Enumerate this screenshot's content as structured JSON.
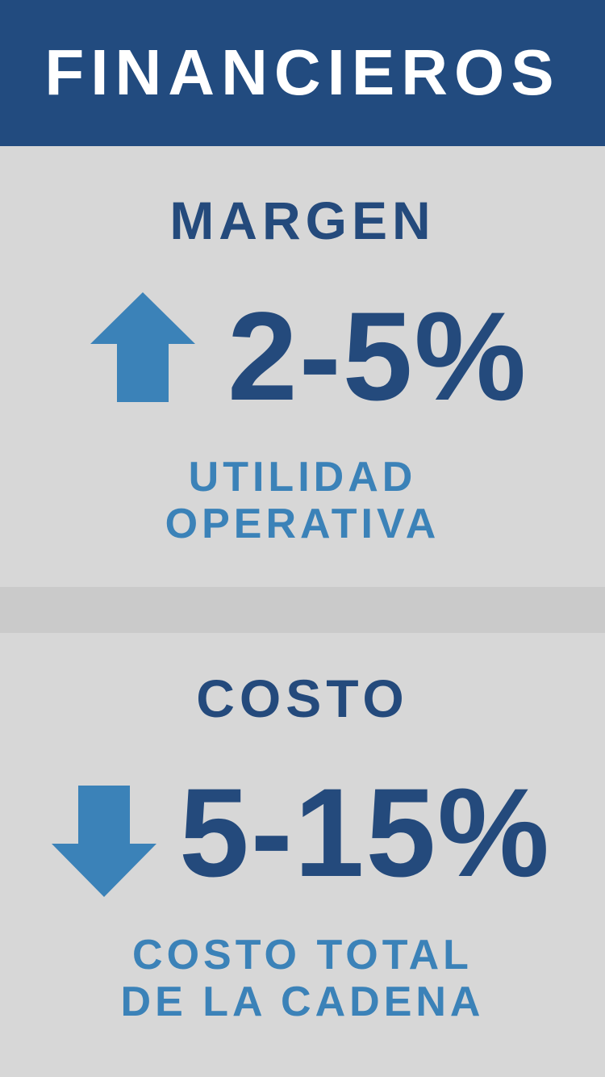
{
  "header": {
    "title": "FINANCIEROS"
  },
  "colors": {
    "header_bg": "#224b7f",
    "dark_blue": "#244a7c",
    "light_blue": "#3b82b8",
    "background": "#d7d7d7",
    "separator": "#cacaca"
  },
  "sections": [
    {
      "title": "MARGEN",
      "icon": "arrow-up-icon",
      "value": "2-5%",
      "subtitle_lines": [
        "UTILIDAD",
        "OPERATIVA"
      ]
    },
    {
      "title": "COSTO",
      "icon": "arrow-down-icon",
      "value": "5-15%",
      "subtitle_lines": [
        "COSTO TOTAL",
        "DE LA CADENA"
      ]
    }
  ]
}
